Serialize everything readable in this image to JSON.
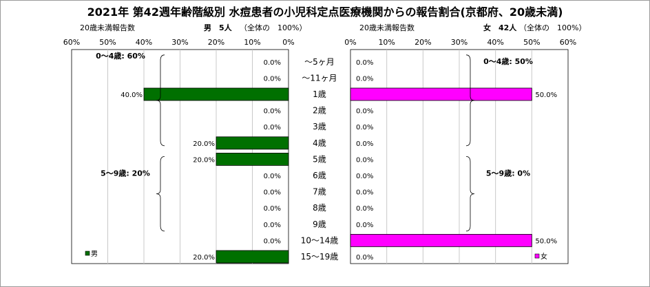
{
  "title": "2021年 第42週年齢階級別 水痘患者の小児科定点医療機関からの報告割合(京都府、20歳未満)",
  "chart_data": {
    "type": "bar",
    "categories": [
      "～5ヶ月",
      "～11ヶ月",
      "1歳",
      "2歳",
      "3歳",
      "4歳",
      "5歳",
      "6歳",
      "7歳",
      "8歳",
      "9歳",
      "10～14歳",
      "15～19歳"
    ],
    "xlim": [
      0,
      60
    ],
    "ticks": [
      "0%",
      "10%",
      "20%",
      "30%",
      "40%",
      "50%",
      "60%"
    ],
    "male": {
      "header_left": "20歳未満報告数",
      "header_name": "男",
      "header_count": "5人",
      "header_pct": "（全体の　100%）",
      "legend": "男",
      "color": "#007000",
      "values": [
        0,
        0,
        40,
        0,
        0,
        20,
        20,
        0,
        0,
        0,
        0,
        0,
        20
      ],
      "labels": [
        "0.0%",
        "0.0%",
        "40.0%",
        "0.0%",
        "0.0%",
        "20.0%",
        "20.0%",
        "0.0%",
        "0.0%",
        "0.0%",
        "0.0%",
        "0.0%",
        "20.0%"
      ],
      "group_0_4": "0～4歳: 60%",
      "group_5_9": "5～9歳: 20%"
    },
    "female": {
      "header_left": "20歳未満報告数",
      "header_name": "女",
      "header_count": "42人",
      "header_pct": "（全体の　100%）",
      "legend": "女",
      "color": "#ff00ff",
      "values": [
        0,
        0,
        50,
        0,
        0,
        0,
        0,
        0,
        0,
        0,
        0,
        50,
        0
      ],
      "labels": [
        "0.0%",
        "0.0%",
        "50.0%",
        "0.0%",
        "0.0%",
        "0.0%",
        "0.0%",
        "0.0%",
        "0.0%",
        "0.0%",
        "0.0%",
        "50.0%",
        "0.0%"
      ],
      "group_0_4": "0～4歳: 50%",
      "group_5_9": "5～9歳: 0%"
    }
  }
}
